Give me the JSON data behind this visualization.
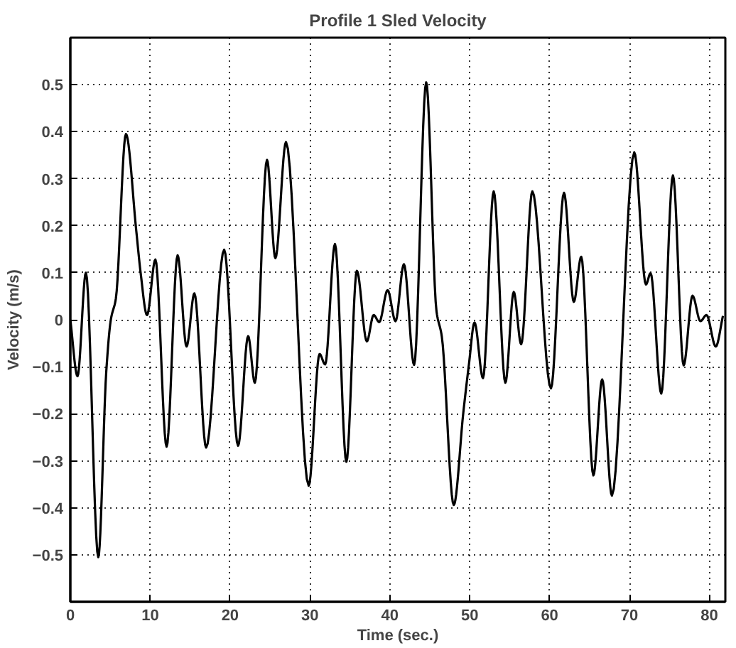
{
  "chart_data": {
    "type": "line",
    "title": "Profile 1 Sled Velocity",
    "xlabel": "Time (sec.)",
    "ylabel": "Velocity (m/s)",
    "xlim": [
      0,
      82
    ],
    "ylim": [
      -0.6,
      0.6
    ],
    "xticks": [
      0,
      10,
      20,
      30,
      40,
      50,
      60,
      70,
      80
    ],
    "yticks": [
      -0.5,
      -0.4,
      -0.3,
      -0.2,
      -0.1,
      0,
      0.1,
      0.2,
      0.3,
      0.4,
      0.5
    ],
    "grid": true,
    "line_style": "solid",
    "marker": "none",
    "series": [
      {
        "color": "#000000",
        "x": [
          0,
          0.9,
          1.95,
          3.5,
          4.5,
          5.07,
          5.7,
          6.96,
          8.25,
          8.8,
          9.6,
          10.65,
          12.05,
          13.43,
          14.55,
          15.53,
          17.0,
          19.26,
          21.0,
          22.26,
          23.1,
          24.62,
          25.67,
          27.0,
          29.84,
          31.2,
          31.9,
          33.13,
          34.56,
          35.87,
          37.12,
          37.97,
          38.67,
          39.72,
          40.71,
          41.76,
          43.04,
          44.55,
          45.84,
          46.5,
          48.0,
          49.2,
          49.9,
          50.6,
          51.66,
          53.0,
          54.46,
          55.51,
          56.44,
          57.84,
          60.17,
          61.8,
          63.03,
          63.96,
          65.48,
          66.58,
          67.8,
          70.6,
          72.06,
          72.64,
          73.98,
          75.44,
          76.78,
          77.89,
          78.88,
          79.64,
          80.8,
          81.7
        ],
        "values": [
          0,
          -0.12,
          0.1,
          -0.505,
          -0.11,
          0,
          0.045,
          0.395,
          0.19,
          0.1,
          0.01,
          0.128,
          -0.27,
          0.137,
          -0.057,
          0.056,
          -0.272,
          0.149,
          -0.268,
          -0.035,
          -0.134,
          0.34,
          0.131,
          0.378,
          -0.353,
          -0.073,
          -0.095,
          0.161,
          -0.302,
          0.104,
          -0.046,
          0.01,
          -0.005,
          0.063,
          -0.003,
          0.118,
          -0.096,
          0.505,
          0.018,
          -0.035,
          -0.394,
          -0.197,
          -0.095,
          -0.006,
          -0.124,
          0.273,
          -0.134,
          0.059,
          -0.052,
          0.273,
          -0.146,
          0.27,
          0.038,
          0.134,
          -0.331,
          -0.127,
          -0.374,
          0.356,
          0.075,
          0.099,
          -0.157,
          0.307,
          -0.097,
          0.051,
          -0.003,
          0.01,
          -0.057,
          0.008
        ]
      }
    ]
  }
}
